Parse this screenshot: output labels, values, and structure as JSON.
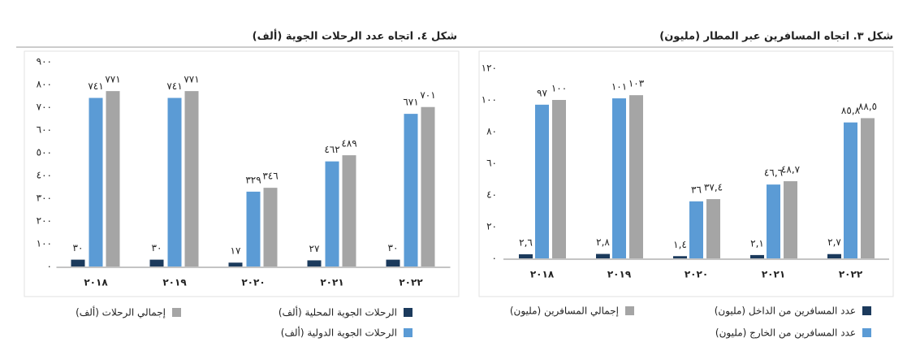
{
  "chart_data": [
    {
      "type": "bar",
      "title": "شكل ٣. اتجاه المسافرين عبر المطار (مليون)",
      "categories": [
        "٢٠١٨",
        "٢٠١٩",
        "٢٠٢٠",
        "٢٠٢١",
        "٢٠٢٢"
      ],
      "series": [
        {
          "name": "عدد المسافرين من الداخل (مليون)",
          "color": "#1b3a5c",
          "values": [
            2.6,
            2.8,
            1.4,
            2.1,
            2.7
          ],
          "value_labels": [
            "٢,٦",
            "٢,٨",
            "١,٤",
            "٢,١",
            "٢,٧"
          ]
        },
        {
          "name": "عدد المسافرين من الخارج (مليون)",
          "color": "#5b9bd5",
          "values": [
            97,
            101,
            36,
            46.6,
            85.8
          ],
          "value_labels": [
            "٩٧",
            "١٠١",
            "٣٦",
            "٤٦,٦",
            "٨٥,٨"
          ]
        },
        {
          "name": "إجمالي المسافرين (مليون)",
          "color": "#a5a5a5",
          "values": [
            100,
            103,
            37.4,
            48.7,
            88.5
          ],
          "value_labels": [
            "١٠٠",
            "١٠٣",
            "٣٧,٤",
            "٤٨,٧",
            "٨٨,٥"
          ]
        }
      ],
      "ylim": [
        0,
        120
      ],
      "yticks": [
        {
          "value": 0,
          "label": "٠"
        },
        {
          "value": 20,
          "label": "٢٠"
        },
        {
          "value": 40,
          "label": "٤٠"
        },
        {
          "value": 60,
          "label": "٦٠"
        },
        {
          "value": 80,
          "label": "٨٠"
        },
        {
          "value": 100,
          "label": "١٠٠"
        },
        {
          "value": 120,
          "label": "١٢٠"
        }
      ],
      "grid": false
    },
    {
      "type": "bar",
      "title": "شكل ٤. اتجاه عدد الرحلات الجوية (ألف)",
      "categories": [
        "٢٠١٨",
        "٢٠١٩",
        "٢٠٢٠",
        "٢٠٢١",
        "٢٠٢٢"
      ],
      "series": [
        {
          "name": "الرحلات الجوية المحلية (ألف)",
          "color": "#1b3a5c",
          "values": [
            30,
            30,
            17,
            27,
            30
          ],
          "value_labels": [
            "٣٠",
            "٣٠",
            "١٧",
            "٢٧",
            "٣٠"
          ]
        },
        {
          "name": "الرحلات الجوية الدولية (ألف)",
          "color": "#5b9bd5",
          "values": [
            741,
            741,
            329,
            462,
            671
          ],
          "value_labels": [
            "٧٤١",
            "٧٤١",
            "٣٢٩",
            "٤٦٢",
            "٦٧١"
          ]
        },
        {
          "name": "إجمالي الرحلات (ألف)",
          "color": "#a5a5a5",
          "values": [
            771,
            771,
            346,
            489,
            701
          ],
          "value_labels": [
            "٧٧١",
            "٧٧١",
            "٣٤٦",
            "٤٨٩",
            "٧٠١"
          ]
        }
      ],
      "ylim": [
        0,
        900
      ],
      "yticks": [
        {
          "value": 0,
          "label": "٠"
        },
        {
          "value": 100,
          "label": "١٠٠"
        },
        {
          "value": 200,
          "label": "٢٠٠"
        },
        {
          "value": 300,
          "label": "٣٠٠"
        },
        {
          "value": 400,
          "label": "٤٠٠"
        },
        {
          "value": 500,
          "label": "٥٠٠"
        },
        {
          "value": 600,
          "label": "٦٠٠"
        },
        {
          "value": 700,
          "label": "٧٠٠"
        },
        {
          "value": 800,
          "label": "٨٠٠"
        },
        {
          "value": 900,
          "label": "٩٠٠"
        }
      ],
      "grid": false
    }
  ]
}
